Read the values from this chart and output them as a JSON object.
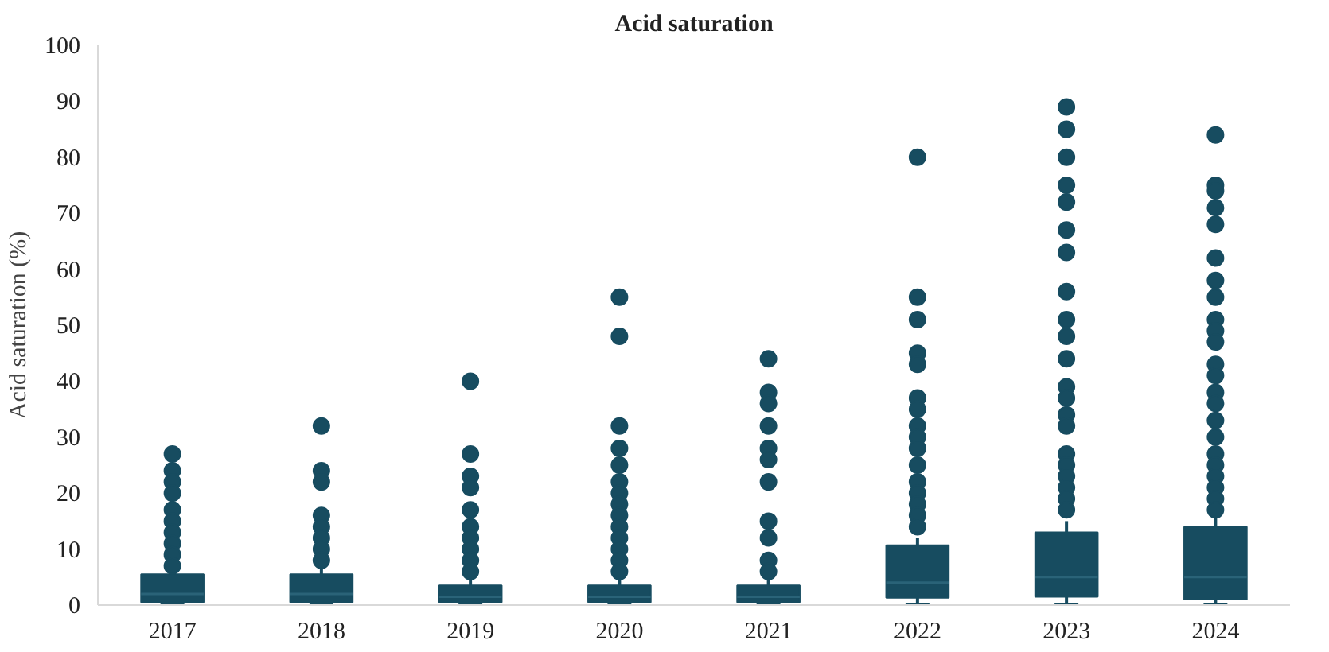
{
  "chart_data": {
    "type": "box",
    "title": "Acid saturation",
    "ylabel": "Acid saturation (%)",
    "categories": [
      "2017",
      "2018",
      "2019",
      "2020",
      "2021",
      "2022",
      "2023",
      "2024"
    ],
    "color": "#174c60",
    "ylim": [
      0,
      100
    ],
    "yticks": [
      0,
      10,
      20,
      30,
      40,
      50,
      60,
      70,
      80,
      90,
      100
    ],
    "grid": false,
    "boxes": [
      {
        "low": 0,
        "q1": 0.5,
        "median": 2,
        "q3": 5.5,
        "high": 6.5,
        "outliers": [
          27,
          24,
          22,
          20,
          17,
          15,
          13,
          11,
          9,
          7
        ]
      },
      {
        "low": 0,
        "q1": 0.5,
        "median": 2,
        "q3": 5.5,
        "high": 6.5,
        "outliers": [
          32,
          24,
          22,
          16,
          14,
          12,
          10,
          8
        ]
      },
      {
        "low": 0,
        "q1": 0.5,
        "median": 1.5,
        "q3": 3.5,
        "high": 4.5,
        "outliers": [
          40,
          27,
          23,
          21,
          17,
          14,
          12,
          10,
          8,
          6
        ]
      },
      {
        "low": 0,
        "q1": 0.5,
        "median": 1.5,
        "q3": 3.5,
        "high": 4.5,
        "outliers": [
          55,
          48,
          32,
          28,
          25,
          22,
          20,
          18,
          16,
          14,
          12,
          10,
          8,
          6
        ]
      },
      {
        "low": 0,
        "q1": 0.5,
        "median": 1.5,
        "q3": 3.5,
        "high": 4.5,
        "outliers": [
          44,
          38,
          36,
          32,
          28,
          26,
          22,
          15,
          12,
          8,
          6
        ]
      },
      {
        "low": 0,
        "q1": 1.3,
        "median": 4,
        "q3": 10.7,
        "high": 12,
        "outliers": [
          80,
          55,
          51,
          45,
          43,
          37,
          35,
          32,
          30,
          28,
          25,
          22,
          20,
          18,
          16,
          14
        ]
      },
      {
        "low": 0,
        "q1": 1.5,
        "median": 5,
        "q3": 13,
        "high": 15,
        "outliers": [
          89,
          85,
          80,
          75,
          72,
          67,
          63,
          56,
          51,
          48,
          44,
          39,
          37,
          34,
          32,
          27,
          25,
          23,
          21,
          19,
          17
        ]
      },
      {
        "low": 0,
        "q1": 1,
        "median": 5,
        "q3": 14,
        "high": 16,
        "outliers": [
          84,
          75,
          74,
          71,
          68,
          62,
          58,
          55,
          51,
          49,
          47,
          43,
          41,
          38,
          36,
          33,
          30,
          27,
          25,
          23,
          21,
          19,
          17
        ]
      }
    ]
  }
}
